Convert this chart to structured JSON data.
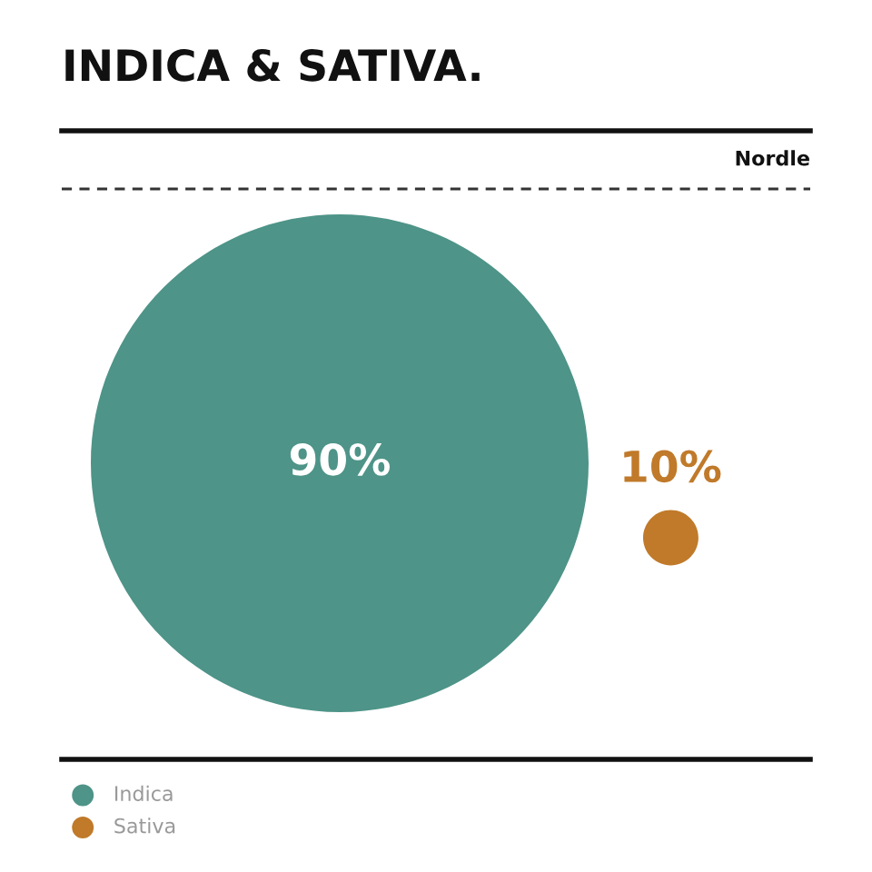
{
  "chart_data": {
    "type": "other",
    "title": "INDICA & SATIVA.",
    "subtitle": "Nordle",
    "categories": [
      "Indica",
      "Sativa"
    ],
    "values": [
      90,
      10
    ],
    "colors": [
      "#4e9488",
      "#c07a2a"
    ],
    "value_labels": [
      "90%",
      "10%"
    ]
  }
}
